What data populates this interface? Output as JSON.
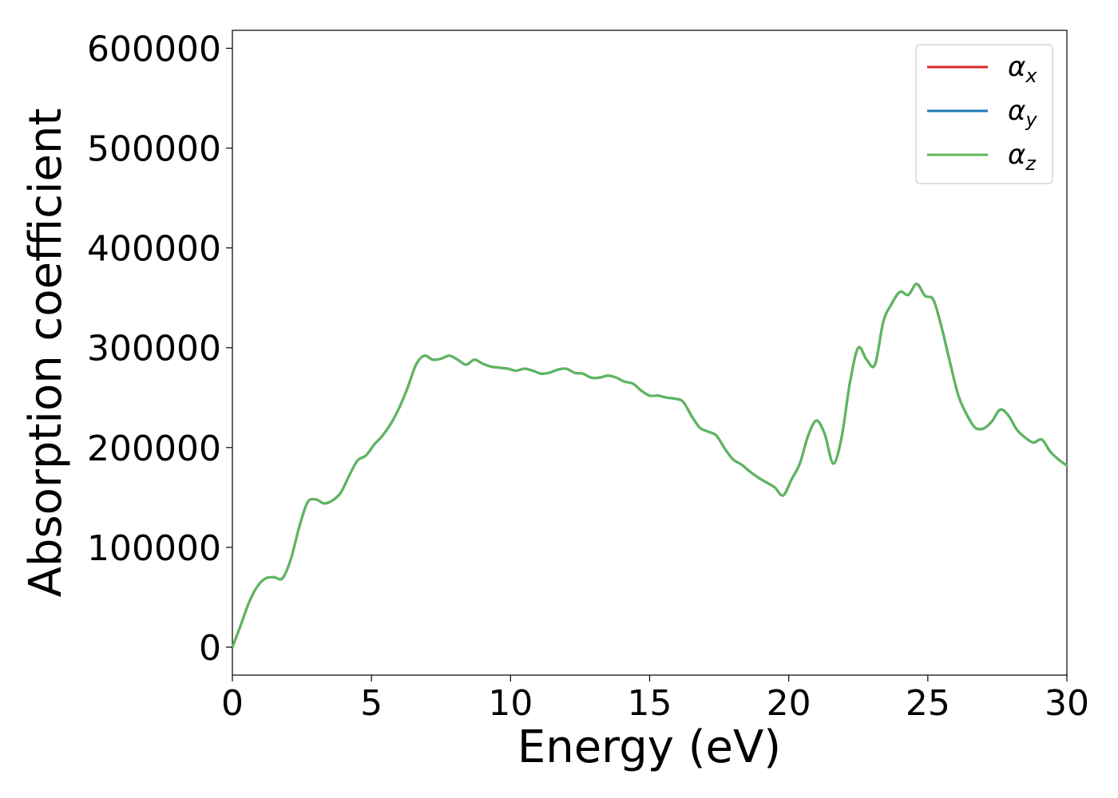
{
  "chart_data": {
    "type": "line",
    "xlabel": "Energy (eV)",
    "ylabel": "Absorption coefficient",
    "xlim": [
      0,
      30
    ],
    "ylim": [
      -28000,
      618000
    ],
    "xticks": [
      0,
      5,
      10,
      15,
      20,
      25,
      30
    ],
    "yticks": [
      0,
      100000,
      200000,
      300000,
      400000,
      500000,
      600000
    ],
    "grid": false,
    "legend_position": "top-right",
    "series": [
      {
        "name": "α",
        "subscript": "x",
        "color": "#d62728"
      },
      {
        "name": "α",
        "subscript": "y",
        "color": "#1f77b4"
      },
      {
        "name": "α",
        "subscript": "z",
        "color": "#5cb85c"
      }
    ],
    "x": [
      0,
      0.3,
      0.6,
      0.9,
      1.2,
      1.5,
      1.8,
      2.1,
      2.4,
      2.7,
      3.0,
      3.3,
      3.6,
      3.9,
      4.2,
      4.5,
      4.8,
      5.1,
      5.4,
      5.7,
      6.0,
      6.3,
      6.6,
      6.9,
      7.2,
      7.5,
      7.8,
      8.1,
      8.4,
      8.7,
      9.0,
      9.3,
      9.6,
      9.9,
      10.2,
      10.5,
      10.8,
      11.1,
      11.4,
      11.7,
      12.0,
      12.3,
      12.6,
      12.9,
      13.2,
      13.5,
      13.8,
      14.1,
      14.4,
      14.7,
      15.0,
      15.3,
      15.6,
      15.9,
      16.2,
      16.5,
      16.8,
      17.1,
      17.4,
      17.7,
      18.0,
      18.3,
      18.6,
      18.9,
      19.2,
      19.5,
      19.8,
      20.1,
      20.4,
      20.7,
      21.0,
      21.3,
      21.6,
      21.9,
      22.2,
      22.5,
      22.8,
      23.1,
      23.4,
      23.7,
      24.0,
      24.3,
      24.6,
      24.9,
      25.2,
      25.5,
      25.8,
      26.1,
      26.4,
      26.7,
      27.0,
      27.3,
      27.6,
      27.9,
      28.2,
      28.5,
      28.8,
      29.1,
      29.4,
      29.7,
      30.0
    ],
    "y": [
      0,
      22000,
      45000,
      61000,
      69000,
      70000,
      69000,
      88000,
      120000,
      145000,
      148000,
      144000,
      147000,
      155000,
      172000,
      187000,
      192000,
      203000,
      212000,
      224000,
      240000,
      260000,
      283000,
      292000,
      288000,
      289000,
      292000,
      288000,
      283000,
      288000,
      284000,
      281000,
      280000,
      279000,
      277000,
      279000,
      277000,
      274000,
      275000,
      278000,
      279000,
      275000,
      274000,
      270000,
      270000,
      272000,
      270000,
      266000,
      264000,
      257000,
      252000,
      252000,
      250000,
      249000,
      246000,
      232000,
      220000,
      216000,
      212000,
      199000,
      188000,
      183000,
      176000,
      170000,
      165000,
      160000,
      152000,
      168000,
      184000,
      212000,
      227000,
      213000,
      184000,
      210000,
      265000,
      300000,
      288000,
      283000,
      326000,
      344000,
      356000,
      353000,
      364000,
      352000,
      348000,
      320000,
      285000,
      252000,
      233000,
      220000,
      219000,
      226000,
      238000,
      232000,
      218000,
      210000,
      205000,
      208000,
      196000,
      188000,
      182000
    ]
  }
}
